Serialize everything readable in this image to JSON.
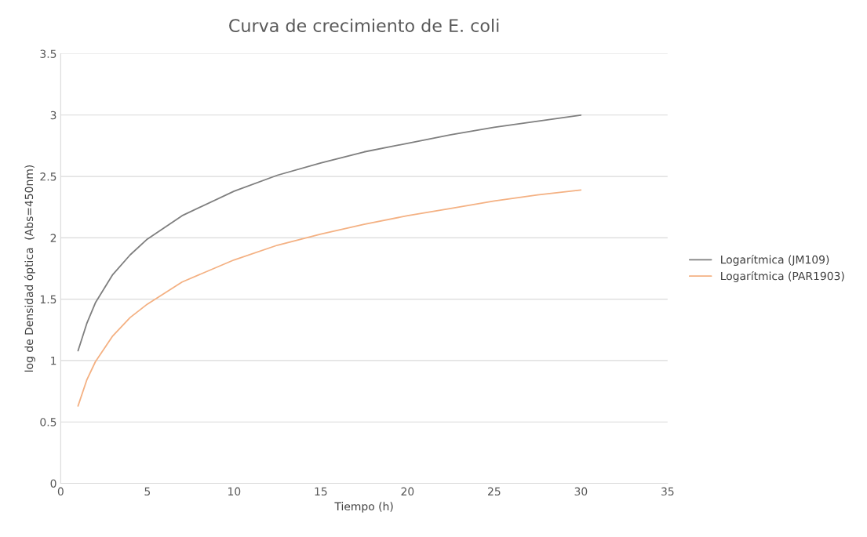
{
  "chart_data": {
    "type": "line",
    "title": "Curva de crecimiento de E. coli",
    "xlabel": "Tiempo (h)",
    "ylabel": "log de Densidad óptica  (Abs=450nm)",
    "x": [
      1,
      1.5,
      2,
      3,
      4,
      5,
      7,
      10,
      12.5,
      15,
      17.5,
      20,
      22.5,
      25,
      27.5,
      30
    ],
    "series": [
      {
        "name": "Logarítmica (JM109)",
        "color": "#7f7f7f",
        "values": [
          1.08,
          1.3,
          1.47,
          1.7,
          1.86,
          1.99,
          2.18,
          2.38,
          2.51,
          2.61,
          2.7,
          2.77,
          2.84,
          2.9,
          2.95,
          3.0
        ]
      },
      {
        "name": "Logarítmica (PAR1903)",
        "color": "#f4b183",
        "values": [
          0.63,
          0.84,
          0.99,
          1.2,
          1.35,
          1.46,
          1.64,
          1.82,
          1.94,
          2.03,
          2.11,
          2.18,
          2.24,
          2.3,
          2.35,
          2.39
        ]
      }
    ],
    "xlim": [
      0,
      35
    ],
    "xticks": [
      0,
      5,
      10,
      15,
      20,
      25,
      30,
      35
    ],
    "ylim": [
      0,
      3.5
    ],
    "yticks": [
      0,
      0.5,
      1,
      1.5,
      2,
      2.5,
      3,
      3.5
    ],
    "grid": "y",
    "legend": "right",
    "marker": "none",
    "line_style": "solid"
  }
}
